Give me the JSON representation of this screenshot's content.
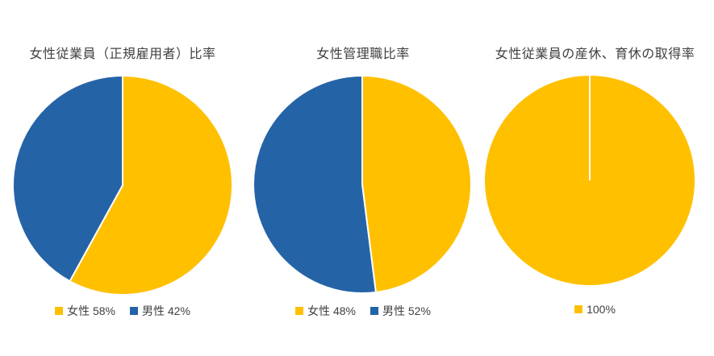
{
  "page": {
    "background": "#FFFFFF"
  },
  "colors": {
    "female_series": "#FFC000",
    "male_series": "#2563A7",
    "title_text": "#404040",
    "legend_text": "#404040",
    "slice_border": "#FFFFFF"
  },
  "chart_data": [
    {
      "type": "pie",
      "title": "女性従業員（正規雇用者）比率",
      "start_angle_deg": 0,
      "direction": "clockwise",
      "legend_position": "bottom",
      "slices": [
        {
          "label": "女性",
          "value": 58,
          "color": "#FFC000"
        },
        {
          "label": "男性",
          "value": 42,
          "color": "#2563A7"
        }
      ],
      "legend": [
        {
          "text": "女性 58%",
          "color": "#FFC000"
        },
        {
          "text": "男性 42%",
          "color": "#2563A7"
        }
      ]
    },
    {
      "type": "pie",
      "title": "女性管理職比率",
      "start_angle_deg": 0,
      "direction": "clockwise",
      "legend_position": "bottom",
      "slices": [
        {
          "label": "女性",
          "value": 48,
          "color": "#FFC000"
        },
        {
          "label": "男性",
          "value": 52,
          "color": "#2563A7"
        }
      ],
      "legend": [
        {
          "text": "女性 48%",
          "color": "#FFC000"
        },
        {
          "text": "男性 52%",
          "color": "#2563A7"
        }
      ]
    },
    {
      "type": "pie",
      "title": "女性従業員の産休、育休の取得率",
      "start_angle_deg": 0,
      "direction": "clockwise",
      "legend_position": "bottom",
      "slices": [
        {
          "label": "100%",
          "value": 100,
          "color": "#FFC000"
        }
      ],
      "legend": [
        {
          "text": "100%",
          "color": "#FFC000"
        }
      ]
    }
  ]
}
